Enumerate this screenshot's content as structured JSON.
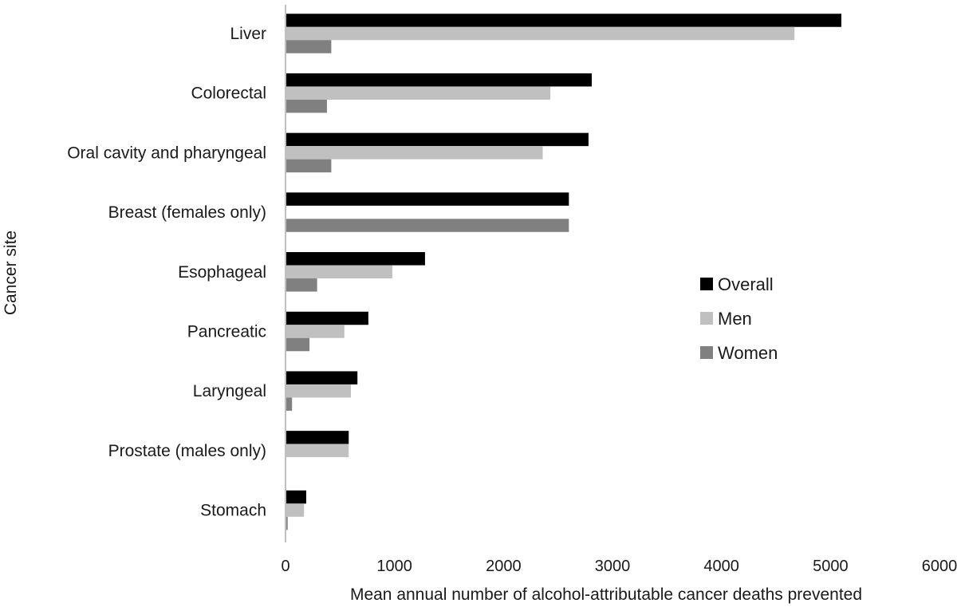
{
  "chart_data": {
    "type": "bar",
    "orientation": "horizontal",
    "categories": [
      "Liver",
      "Colorectal",
      "Oral cavity and pharyngeal",
      "Breast (females only)",
      "Esophageal",
      "Pancreatic",
      "Laryngeal",
      "Prostate (males only)",
      "Stomach"
    ],
    "series": [
      {
        "name": "Overall",
        "color": "#000000",
        "values": [
          5100,
          2810,
          2780,
          2600,
          1280,
          760,
          660,
          580,
          190
        ]
      },
      {
        "name": "Men",
        "color": "#c0c0c0",
        "values": [
          4670,
          2430,
          2360,
          0,
          980,
          540,
          600,
          580,
          170
        ]
      },
      {
        "name": "Women",
        "color": "#808080",
        "values": [
          420,
          380,
          420,
          2600,
          290,
          220,
          60,
          0,
          20
        ]
      }
    ],
    "xlabel": "Mean annual number of alcohol-attributable cancer deaths prevented",
    "ylabel": "Cancer site",
    "xlim": [
      0,
      6000
    ],
    "xticks": [
      0,
      1000,
      2000,
      3000,
      4000,
      5000,
      6000
    ],
    "grid": false,
    "legend": "right"
  }
}
